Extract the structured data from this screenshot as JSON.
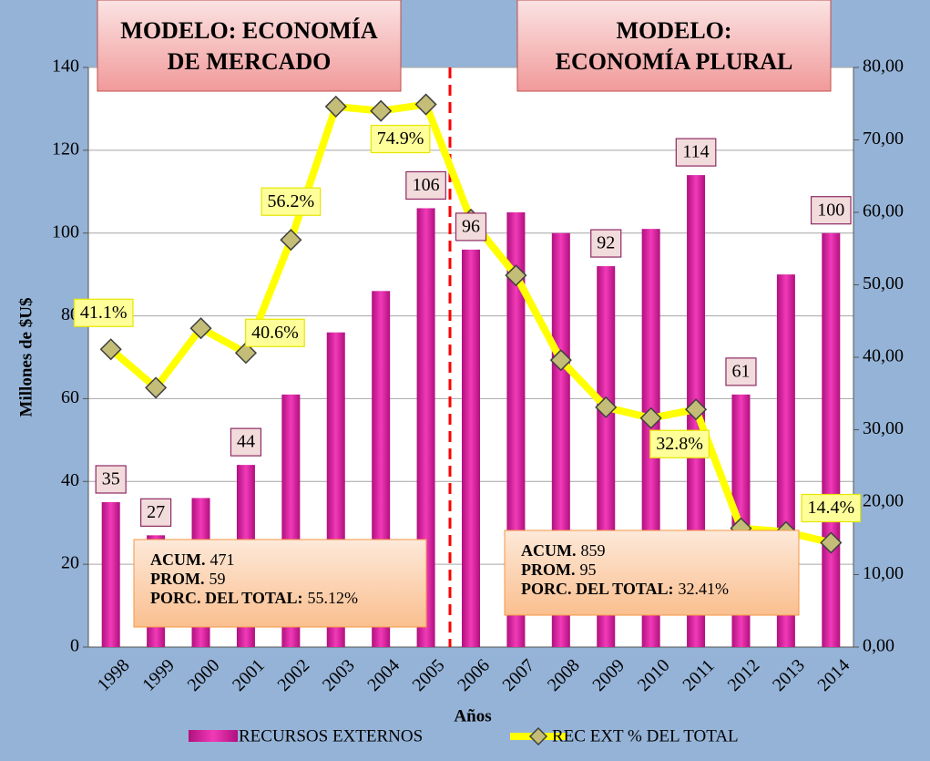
{
  "chart_data": {
    "type": "bar",
    "y_label": "Millones de $U$",
    "x_label": "Años",
    "categories": [
      "1998",
      "1999",
      "2000",
      "2001",
      "2002",
      "2003",
      "2004",
      "2005",
      "2006",
      "2007",
      "2008",
      "2009",
      "2010",
      "2011",
      "2012",
      "2013",
      "2014"
    ],
    "series": [
      {
        "name": "RECURSOS EXTERNOS",
        "type": "bar",
        "color": "#d9169c",
        "values": [
          35,
          27,
          36,
          44,
          61,
          76,
          86,
          106,
          96,
          105,
          100,
          92,
          101,
          114,
          61,
          90,
          100
        ],
        "value_labels": [
          "35",
          "27",
          null,
          "44",
          null,
          null,
          null,
          "106",
          "96",
          null,
          null,
          "92",
          null,
          "114",
          "61",
          null,
          "100"
        ]
      },
      {
        "name": "REC EXT % DEL TOTAL",
        "type": "line",
        "axis": "y2",
        "color": "#ffff00",
        "values": [
          41.1,
          35.8,
          44,
          40.6,
          56.2,
          74.6,
          74,
          74.9,
          59,
          51.3,
          39.6,
          33.1,
          31.6,
          32.8,
          16.4,
          15.9,
          14.4
        ],
        "value_labels": [
          "41.1%",
          null,
          null,
          "40.6%",
          "56.2%",
          null,
          null,
          "74.9%",
          null,
          null,
          null,
          null,
          null,
          "32.8%",
          null,
          null,
          "14.4%"
        ]
      }
    ],
    "ylim": [
      0,
      140
    ],
    "yticks": [
      0,
      20,
      40,
      60,
      80,
      100,
      120,
      140
    ],
    "y2lim": [
      0,
      80
    ],
    "y2ticks": [
      {
        "value": 0,
        "label": "0,00"
      },
      {
        "value": 10,
        "label": "10,00"
      },
      {
        "value": 20,
        "label": "20,00"
      },
      {
        "value": 30,
        "label": "30,00"
      },
      {
        "value": 40,
        "label": "40,00"
      },
      {
        "value": 50,
        "label": "50,00"
      },
      {
        "value": 60,
        "label": "60,00"
      },
      {
        "value": 70,
        "label": "70,00"
      },
      {
        "value": 80,
        "label": "80,00"
      }
    ],
    "grid": true,
    "legend": "bottom",
    "models": [
      [
        "MODELO: ECONOMÍA",
        "DE MERCADO"
      ],
      [
        "MODELO:",
        "ECONOMÍA PLURAL"
      ]
    ],
    "stats": [
      [
        [
          "ACUM.",
          "471"
        ],
        [
          "PROM.",
          "59"
        ],
        [
          "PORC. DEL TOTAL:",
          "55.12%"
        ]
      ],
      [
        [
          "ACUM.",
          "859"
        ],
        [
          "PROM.",
          "95"
        ],
        [
          "PORC. DEL TOTAL:",
          "32.41%"
        ]
      ]
    ]
  }
}
